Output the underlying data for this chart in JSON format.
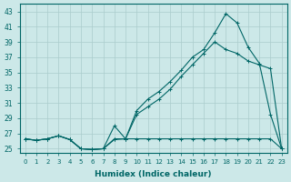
{
  "xlabel": "Humidex (Indice chaleur)",
  "bg_color": "#cce8e8",
  "line_color": "#006666",
  "grid_color": "#aacccc",
  "xlim": [
    -0.5,
    23.5
  ],
  "ylim": [
    24.5,
    44
  ],
  "xticks": [
    0,
    1,
    2,
    3,
    4,
    5,
    6,
    7,
    8,
    9,
    10,
    11,
    12,
    13,
    14,
    15,
    16,
    17,
    18,
    19,
    20,
    21,
    22,
    23
  ],
  "yticks": [
    25,
    27,
    29,
    31,
    33,
    35,
    37,
    39,
    41,
    43
  ],
  "line1_x": [
    0,
    1,
    2,
    3,
    4,
    5,
    6,
    7,
    8,
    9,
    10,
    11,
    12,
    13,
    14,
    15,
    16,
    17,
    18,
    19,
    20,
    21,
    22,
    23
  ],
  "line1_y": [
    26.3,
    26.1,
    26.3,
    26.7,
    26.2,
    25.0,
    24.9,
    25.0,
    26.3,
    26.3,
    26.3,
    26.3,
    26.3,
    26.3,
    26.3,
    26.3,
    26.3,
    26.3,
    26.3,
    26.3,
    26.3,
    26.3,
    26.3,
    25.0
  ],
  "line2_x": [
    0,
    1,
    2,
    3,
    4,
    5,
    6,
    7,
    8,
    9,
    10,
    11,
    12,
    13,
    14,
    15,
    16,
    17,
    18,
    19,
    20,
    21,
    22,
    23
  ],
  "line2_y": [
    26.3,
    26.1,
    26.3,
    26.7,
    26.2,
    25.0,
    24.9,
    25.0,
    26.2,
    26.3,
    30.0,
    31.5,
    32.5,
    33.8,
    35.3,
    37.0,
    38.0,
    40.2,
    42.7,
    41.5,
    38.3,
    36.2,
    29.5,
    25.0
  ],
  "line3_x": [
    0,
    1,
    2,
    3,
    4,
    5,
    6,
    7,
    8,
    9,
    10,
    11,
    12,
    13,
    14,
    15,
    16,
    17,
    18,
    19,
    20,
    21,
    22,
    23
  ],
  "line3_y": [
    26.3,
    26.1,
    26.3,
    26.7,
    26.2,
    25.0,
    24.9,
    25.0,
    28.0,
    26.3,
    29.5,
    30.5,
    31.5,
    32.8,
    34.5,
    36.0,
    37.5,
    39.0,
    38.0,
    37.5,
    36.5,
    36.0,
    35.5,
    25.0
  ]
}
